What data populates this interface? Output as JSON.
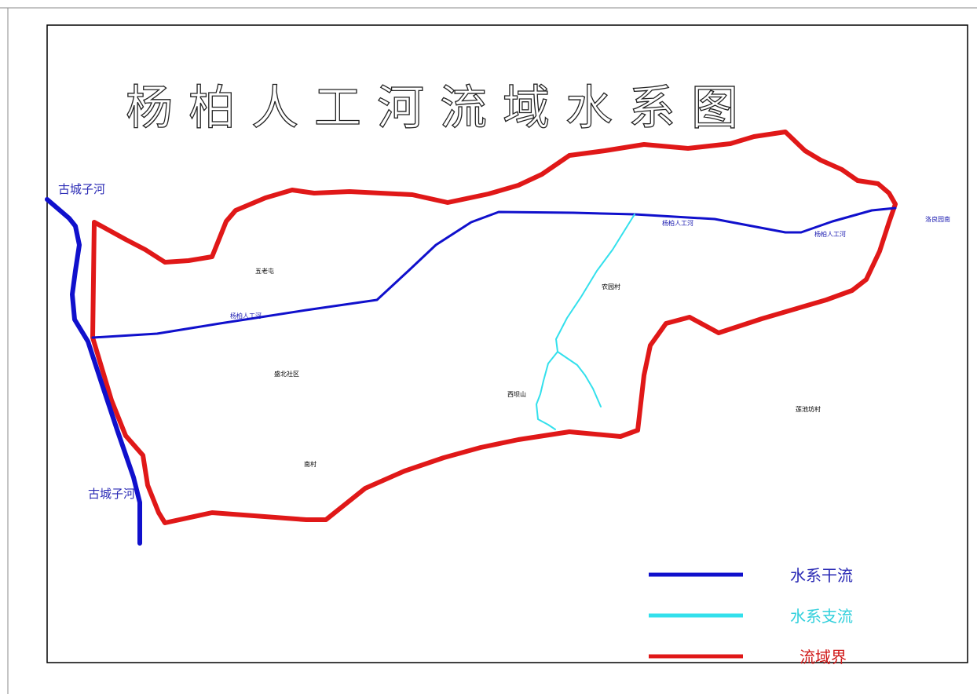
{
  "map": {
    "title": "杨柏人工河流域水系图",
    "river_labels": {
      "gucheng_top": "古城子河",
      "gucheng_bottom": "古城子河",
      "yangbai_west": "杨柏人工河",
      "yangbai_center": "杨柏人工河",
      "yangbai_east": "杨柏人工河",
      "east_outlet": "洛良园南"
    },
    "place_labels": {
      "wulaotun": "五老屯",
      "shengbei": "盛北社区",
      "nancun": "南村",
      "yaoyuan": "农园村",
      "pianling": "西坝山",
      "dayuan": "莲池坊村"
    },
    "colors": {
      "main_river": "#1010cc",
      "tributary": "#33e0ec",
      "boundary": "#e01818",
      "frame": "#000000",
      "title_outline": "#222222"
    }
  },
  "legend": {
    "items": [
      {
        "label": "水系干流",
        "color": "#1010cc"
      },
      {
        "label": "水系支流",
        "color": "#33e0ec"
      },
      {
        "label": "流域界",
        "color": "#e01818"
      }
    ]
  }
}
